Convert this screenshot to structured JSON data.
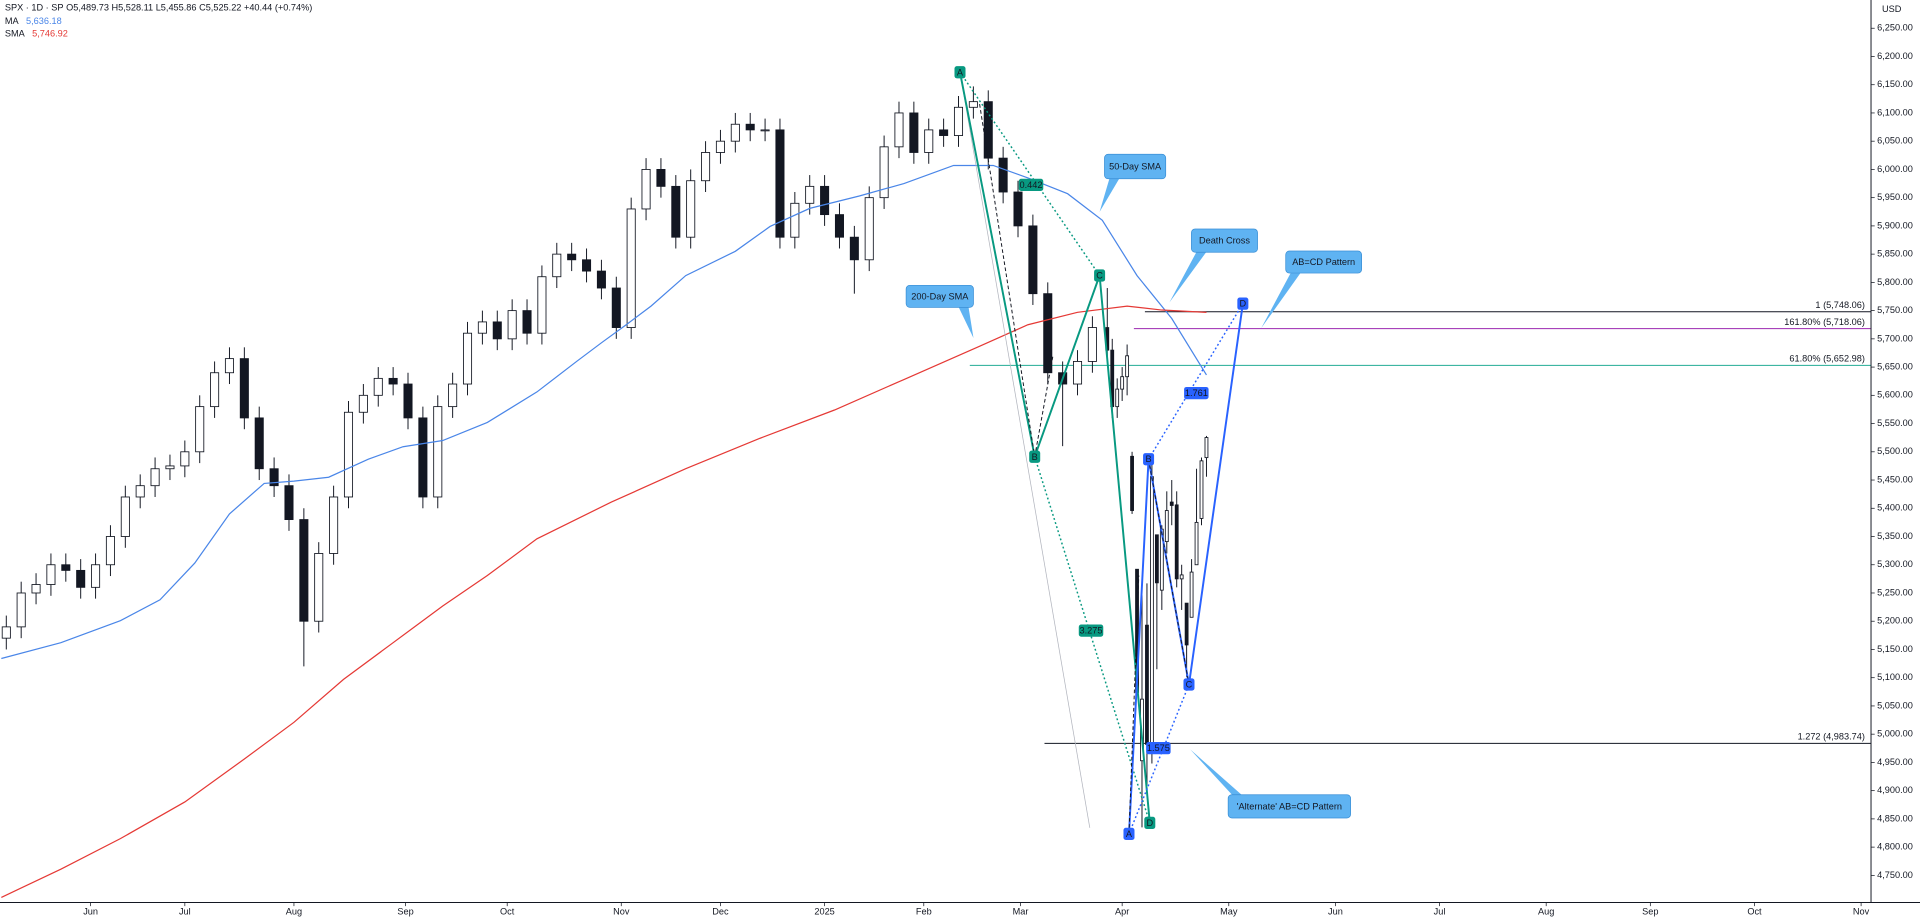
{
  "header": {
    "symbol": "SPX · 1D · SP",
    "ohlc": [
      {
        "key": "O",
        "value": "5,489.73"
      },
      {
        "key": "H",
        "value": "5,528.11"
      },
      {
        "key": "L",
        "value": "5,455.86"
      },
      {
        "key": "C",
        "value": "5,525.22"
      }
    ],
    "change": "+40.44 (+0.74%)",
    "currency": "USD"
  },
  "chart_data": {
    "type": "candlestick",
    "x": [
      -17,
      -14,
      -11,
      -8,
      -5,
      -2,
      1,
      4,
      7,
      10,
      13,
      16,
      19,
      22,
      25,
      28,
      31,
      34,
      37,
      40,
      43,
      46,
      49,
      52,
      55,
      58,
      61,
      64,
      67,
      70,
      73,
      76,
      79,
      82,
      85,
      88,
      91,
      94,
      97,
      100,
      103,
      106,
      109,
      112,
      115,
      118,
      121,
      124,
      127,
      130,
      133,
      136,
      139,
      142,
      145,
      148,
      151,
      154,
      157,
      160,
      163,
      166,
      169,
      172,
      175,
      178,
      181,
      184,
      187,
      190,
      193,
      196,
      199,
      202,
      205,
      206,
      207,
      208,
      209,
      210,
      211,
      212,
      213,
      214,
      215,
      216,
      217,
      218,
      219,
      220,
      221,
      222,
      223,
      224,
      225
    ],
    "open": [
      5170,
      5190,
      5250,
      5265,
      5300,
      5290,
      5260,
      5300,
      5350,
      5420,
      5440,
      5470,
      5475,
      5500,
      5580,
      5640,
      5665,
      5560,
      5470,
      5440,
      5380,
      5200,
      5320,
      5420,
      5570,
      5600,
      5630,
      5620,
      5560,
      5420,
      5580,
      5620,
      5710,
      5730,
      5700,
      5750,
      5710,
      5810,
      5850,
      5840,
      5820,
      5790,
      5720,
      5930,
      6000,
      5970,
      5880,
      5980,
      6030,
      6050,
      6080,
      6070,
      6070,
      5880,
      5940,
      5970,
      5920,
      5880,
      5840,
      5950,
      6040,
      6100,
      6030,
      6070,
      6060,
      6110,
      6120,
      6020,
      5960,
      5900,
      5780,
      5640,
      5620,
      5660,
      5720,
      5680,
      5580,
      5611,
      5633,
      5492,
      5292,
      4953,
      5193,
      4966,
      5353,
      5255,
      5341,
      5411,
      5406,
      5275,
      5232,
      5207,
      5300,
      5382,
      5489.73
    ],
    "high": [
      5210,
      5270,
      5285,
      5320,
      5320,
      5310,
      5320,
      5370,
      5440,
      5460,
      5490,
      5495,
      5520,
      5600,
      5660,
      5685,
      5685,
      5580,
      5490,
      5460,
      5400,
      5340,
      5440,
      5590,
      5620,
      5650,
      5650,
      5640,
      5580,
      5600,
      5640,
      5730,
      5750,
      5750,
      5770,
      5770,
      5830,
      5870,
      5870,
      5860,
      5840,
      5810,
      5950,
      6020,
      6020,
      5990,
      6000,
      6050,
      6070,
      6100,
      6100,
      6090,
      6090,
      5960,
      5990,
      5990,
      5940,
      5900,
      5970,
      6060,
      6120,
      6120,
      6090,
      6090,
      6130,
      6147,
      6140,
      6040,
      5980,
      5920,
      5800,
      5660,
      5680,
      5740,
      5790,
      5700,
      5630,
      5650,
      5690,
      5500,
      5292,
      5246,
      5267,
      5481,
      5353,
      5370,
      5430,
      5450,
      5430,
      5300,
      5232,
      5310,
      5470,
      5490,
      5528.11
    ],
    "low": [
      5150,
      5170,
      5230,
      5245,
      5270,
      5240,
      5240,
      5280,
      5330,
      5400,
      5420,
      5450,
      5455,
      5480,
      5560,
      5620,
      5540,
      5450,
      5420,
      5360,
      5120,
      5180,
      5300,
      5400,
      5550,
      5580,
      5600,
      5540,
      5400,
      5400,
      5560,
      5600,
      5690,
      5680,
      5680,
      5690,
      5690,
      5790,
      5820,
      5800,
      5770,
      5700,
      5700,
      5910,
      5950,
      5860,
      5860,
      5960,
      6010,
      6030,
      6050,
      6050,
      5860,
      5860,
      5920,
      5900,
      5860,
      5780,
      5820,
      5930,
      6020,
      6010,
      6010,
      6040,
      6040,
      6090,
      6000,
      5940,
      5880,
      5760,
      5620,
      5510,
      5600,
      5640,
      5660,
      5560,
      5560,
      5590,
      5600,
      5390,
      5069,
      4835,
      4910,
      4948,
      5115,
      5220,
      5320,
      5370,
      5260,
      5220,
      5101,
      5207,
      5300,
      5370,
      5455.86
    ],
    "close": [
      5190,
      5250,
      5265,
      5300,
      5290,
      5260,
      5300,
      5350,
      5420,
      5440,
      5470,
      5475,
      5500,
      5580,
      5640,
      5665,
      5560,
      5470,
      5440,
      5380,
      5200,
      5320,
      5420,
      5570,
      5600,
      5630,
      5620,
      5560,
      5420,
      5580,
      5620,
      5710,
      5730,
      5700,
      5750,
      5710,
      5810,
      5850,
      5840,
      5820,
      5790,
      5720,
      5930,
      6000,
      5970,
      5880,
      5980,
      6030,
      6050,
      6080,
      6070,
      6070,
      5880,
      5940,
      5970,
      5920,
      5880,
      5840,
      5950,
      6040,
      6100,
      6030,
      6070,
      6060,
      6110,
      6120,
      6020,
      5960,
      5900,
      5780,
      5640,
      5620,
      5660,
      5720,
      5680,
      5580,
      5611,
      5633,
      5670,
      5396,
      5074,
      5062,
      4982,
      5456,
      5268,
      5363,
      5396,
      5405,
      5275,
      5282,
      5158,
      5287,
      5375,
      5484,
      5525.22
    ],
    "up_color": "#ffffff",
    "down_color": "#131722",
    "series": [
      {
        "name": "MA",
        "color": "#4a86e8",
        "legend_value": "5,636.18",
        "x": [
          -18,
          -6,
          6,
          14,
          21,
          28,
          35,
          41,
          48,
          56,
          63,
          71,
          80,
          90,
          98,
          103,
          108,
          113,
          120,
          130,
          137,
          145,
          155,
          164,
          174,
          182,
          189,
          197,
          204,
          211,
          218,
          225
        ],
        "values": [
          5134,
          5162,
          5201,
          5238,
          5303,
          5390,
          5444,
          5448,
          5455,
          5487,
          5509,
          5520,
          5552,
          5606,
          5660,
          5693,
          5725,
          5758,
          5812,
          5855,
          5899,
          5931,
          5953,
          5975,
          6007,
          6007,
          5985,
          5957,
          5910,
          5812,
          5736,
          5636.18
        ]
      },
      {
        "name": "SMA",
        "color": "#e53935",
        "legend_value": "5,746.92",
        "x": [
          -18,
          -6,
          6,
          19,
          31,
          41,
          51,
          61,
          71,
          80,
          90,
          105,
          120,
          135,
          150,
          164,
          179,
          189,
          199,
          209,
          216,
          225
        ],
        "values": [
          4711,
          4761,
          4815,
          4880,
          4956,
          5021,
          5097,
          5162,
          5227,
          5281,
          5346,
          5411,
          5470,
          5524,
          5574,
          5628,
          5686,
          5725,
          5747,
          5758,
          5751,
          5746.92
        ]
      }
    ],
    "xlim": [
      -18.27,
      359
    ],
    "ylim": [
      4702,
      6300
    ],
    "xticks": [
      {
        "value": 0,
        "label": "Jun"
      },
      {
        "value": 19,
        "label": "Jul"
      },
      {
        "value": 41,
        "label": "Aug"
      },
      {
        "value": 63.5,
        "label": "Sep"
      },
      {
        "value": 84,
        "label": "Oct"
      },
      {
        "value": 107,
        "label": "Nov"
      },
      {
        "value": 127,
        "label": "Dec"
      },
      {
        "value": 148,
        "label": "2025"
      },
      {
        "value": 168,
        "label": "Feb"
      },
      {
        "value": 187.5,
        "label": "Mar"
      },
      {
        "value": 208,
        "label": "Apr"
      },
      {
        "value": 229.5,
        "label": "May"
      },
      {
        "value": 251,
        "label": "Jun"
      },
      {
        "value": 272,
        "label": "Jul"
      },
      {
        "value": 293.5,
        "label": "Aug"
      },
      {
        "value": 314.5,
        "label": "Sep"
      },
      {
        "value": 335.5,
        "label": "Oct"
      },
      {
        "value": 357,
        "label": "Nov"
      }
    ],
    "yticks": [
      {
        "value": 4750,
        "label": "4,750.00"
      },
      {
        "value": 4800,
        "label": "4,800.00"
      },
      {
        "value": 4850,
        "label": "4,850.00"
      },
      {
        "value": 4900,
        "label": "4,900.00"
      },
      {
        "value": 4950,
        "label": "4,950.00"
      },
      {
        "value": 5000,
        "label": "5,000.00"
      },
      {
        "value": 5050,
        "label": "5,050.00"
      },
      {
        "value": 5100,
        "label": "5,100.00"
      },
      {
        "value": 5150,
        "label": "5,150.00"
      },
      {
        "value": 5200,
        "label": "5,200.00"
      },
      {
        "value": 5250,
        "label": "5,250.00"
      },
      {
        "value": 5300,
        "label": "5,300.00"
      },
      {
        "value": 5350,
        "label": "5,350.00"
      },
      {
        "value": 5400,
        "label": "5,400.00"
      },
      {
        "value": 5450,
        "label": "5,450.00"
      },
      {
        "value": 5500,
        "label": "5,500.00"
      },
      {
        "value": 5550,
        "label": "5,550.00"
      },
      {
        "value": 5600,
        "label": "5,600.00"
      },
      {
        "value": 5650,
        "label": "5,650.00"
      },
      {
        "value": 5700,
        "label": "5,700.00"
      },
      {
        "value": 5750,
        "label": "5,750.00"
      },
      {
        "value": 5800,
        "label": "5,800.00"
      },
      {
        "value": 5850,
        "label": "5,850.00"
      },
      {
        "value": 5900,
        "label": "5,900.00"
      },
      {
        "value": 5950,
        "label": "5,950.00"
      },
      {
        "value": 6000,
        "label": "6,000.00"
      },
      {
        "value": 6050,
        "label": "6,050.00"
      },
      {
        "value": 6100,
        "label": "6,100.00"
      },
      {
        "value": 6150,
        "label": "6,150.00"
      },
      {
        "value": 6200,
        "label": "6,200.00"
      },
      {
        "value": 6250,
        "label": "6,250.00"
      }
    ],
    "levels": [
      {
        "value": 5748.06,
        "label": "1 (5,748.06)",
        "color": "#131722"
      },
      {
        "value": 5718.06,
        "label": "161.80% (5,718.06)",
        "color": "#9c27b0"
      },
      {
        "value": 5652.98,
        "label": "61.80% (5,652.98)",
        "color": "#22ab94"
      },
      {
        "value": 4983.74,
        "label": "1.272 (4,983.74)",
        "color": "#131722"
      }
    ],
    "pattern_points": [
      "A",
      "B",
      "C",
      "D",
      "A",
      "B",
      "C",
      "D"
    ],
    "ratios": [
      "0.442",
      "3.275",
      "1.761",
      "1.575"
    ],
    "callouts": [
      "50-Day SMA",
      "Death Cross",
      "AB=CD Pattern",
      "200-Day SMA",
      "'Alternate' AB=CD Pattern"
    ]
  }
}
